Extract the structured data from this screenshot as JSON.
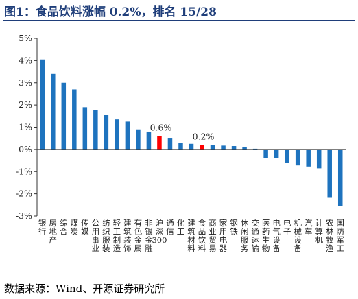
{
  "title": "图1：食品饮料涨幅 0.2%，排名 15/28",
  "source": "数据来源：Wind、开源证券研究所",
  "chart_data": {
    "type": "bar",
    "title": "",
    "xlabel": "",
    "ylabel": "",
    "ylim": [
      -3,
      5
    ],
    "yticks": [
      "-3%",
      "-2%",
      "-1%",
      "0%",
      "1%",
      "2%",
      "3%",
      "4%",
      "5%"
    ],
    "grid": false,
    "legend": "none",
    "colors": {
      "default": "#1e73be",
      "highlight": "#ff0000"
    },
    "highlight": [
      "沪深300",
      "食品饮料"
    ],
    "categories": [
      "银行",
      "房地产",
      "综合",
      "煤炭",
      "传媒",
      "公用事业",
      "纺织服装",
      "轻工制造",
      "建筑装饰",
      "有色金属",
      "非银金融",
      "沪深300",
      "通信",
      "化工",
      "建筑材料",
      "食品饮料",
      "商业贸易",
      "家用电器",
      "钢铁",
      "休闲服务",
      "交通运输",
      "医药生物",
      "电气设备",
      "电子",
      "机械设备",
      "汽车",
      "计算机",
      "农林牧渔",
      "国防军工"
    ],
    "values": [
      4.05,
      3.4,
      3.0,
      2.7,
      1.9,
      1.77,
      1.55,
      1.35,
      1.25,
      0.9,
      0.8,
      0.6,
      0.52,
      0.3,
      0.25,
      0.2,
      0.2,
      0.17,
      0.15,
      0.12,
      0.03,
      -0.38,
      -0.4,
      -0.6,
      -0.72,
      -0.77,
      -0.85,
      -2.15,
      -2.55
    ],
    "data_labels": [
      {
        "category": "沪深300",
        "text": "0.6%"
      },
      {
        "category": "食品饮料",
        "text": "0.2%"
      }
    ]
  }
}
